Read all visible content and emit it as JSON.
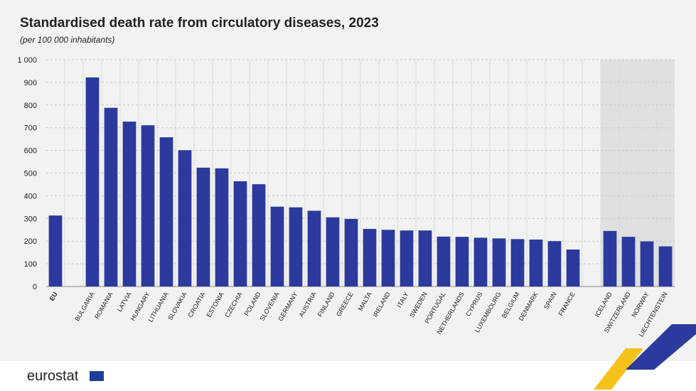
{
  "chart_data": {
    "type": "bar",
    "title": "Standardised death rate from circulatory diseases, 2023",
    "subtitle": "(per 100 000 inhabitants)",
    "categories": [
      "EU",
      null,
      "BULGARIA",
      "ROMANIA",
      "LATVIA",
      "HUNGARY",
      "LITHUANIA",
      "SLOVAKIA",
      "CROATIA",
      "ESTONIA",
      "CZECHIA",
      "POLAND",
      "SLOVENIA",
      "GERMANY",
      "AUSTRIA",
      "FINLAND",
      "GREECE",
      "MALTA",
      "IRELAND",
      "ITALY",
      "SWEDEN",
      "PORTUGAL",
      "NETHERLANDS",
      "CYPRUS",
      "LUXEMBOURG",
      "BELGIUM",
      "DENMARK",
      "SPAIN",
      "FRANCE",
      null,
      "ICELAND",
      "SWITZERLAND",
      "NORWAY",
      "LIECHTENSTEIN"
    ],
    "values": [
      313,
      null,
      922,
      788,
      727,
      711,
      658,
      601,
      524,
      521,
      464,
      451,
      352,
      349,
      334,
      305,
      298,
      254,
      250,
      247,
      247,
      220,
      219,
      215,
      212,
      209,
      207,
      200,
      163,
      null,
      245,
      219,
      199,
      177
    ],
    "color": "#2b3a9c",
    "ylim": [
      0,
      1000
    ],
    "yticks": [
      0,
      100,
      200,
      300,
      400,
      500,
      600,
      700,
      800,
      900,
      {
        "value": 1000,
        "label": "1 000"
      }
    ],
    "grid": true
  },
  "footer": {
    "logo": "eurostat"
  }
}
